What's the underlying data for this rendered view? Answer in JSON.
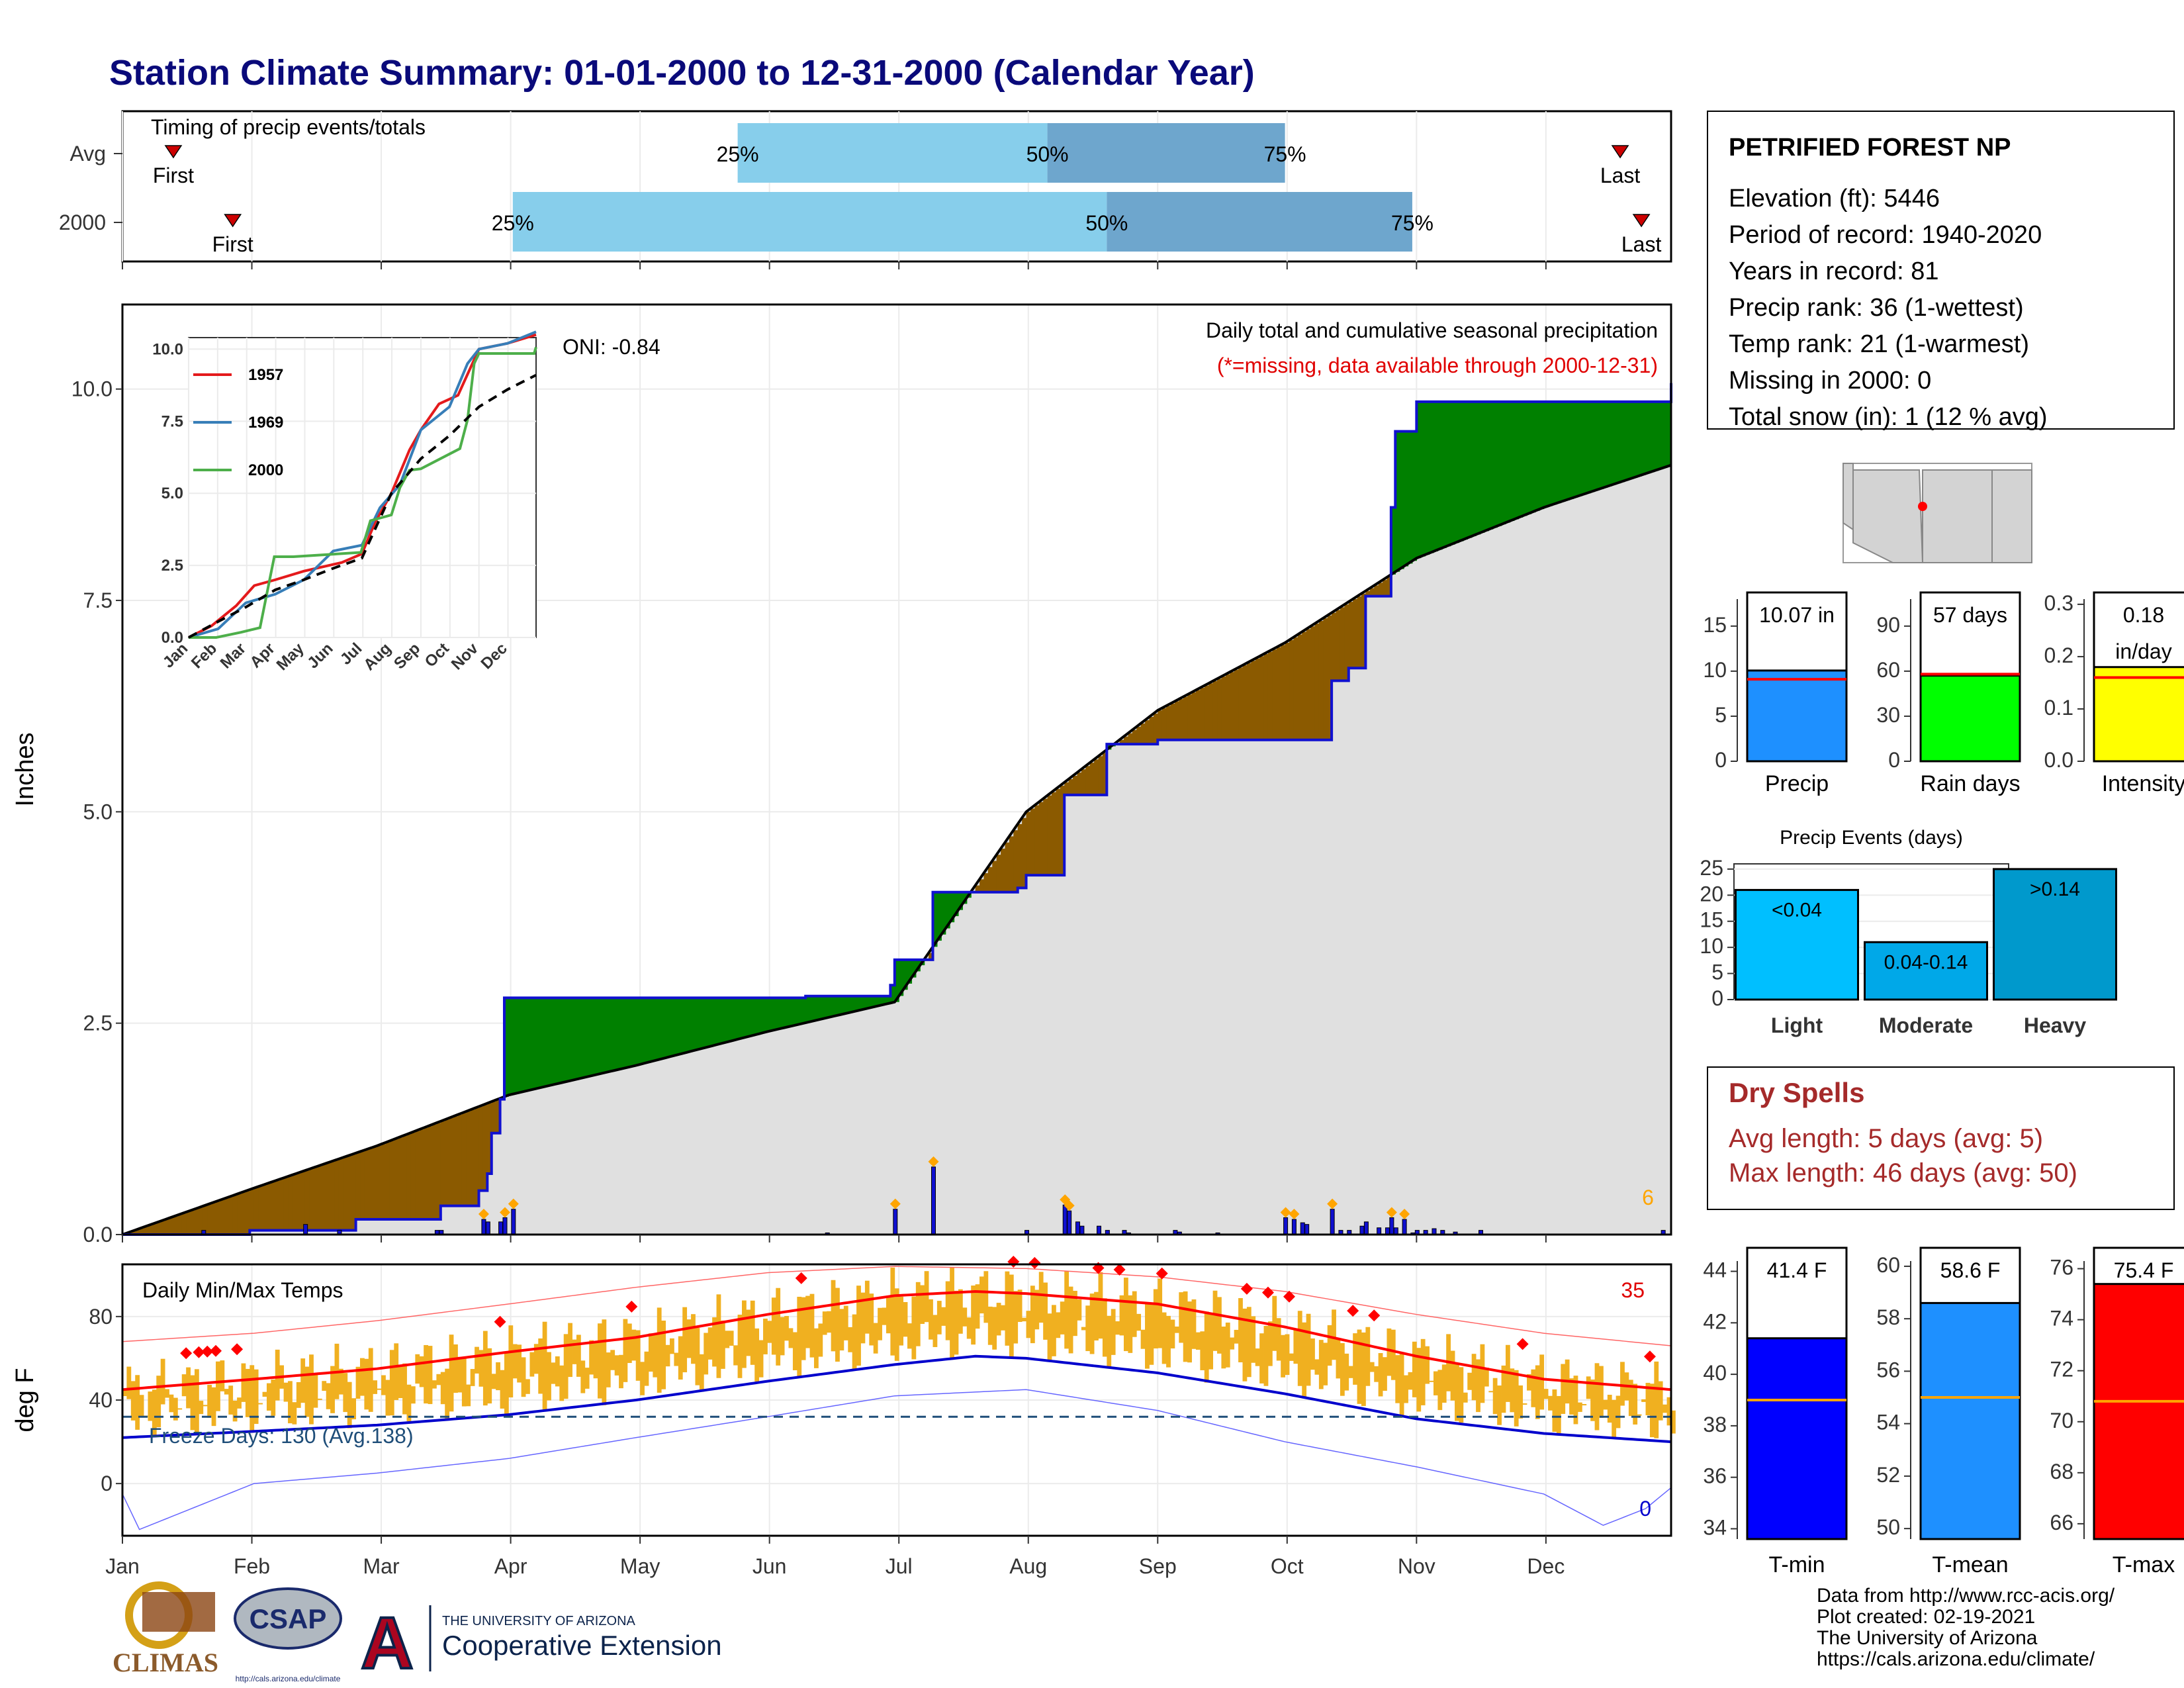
{
  "title": "Station Climate Summary: 01-01-2000 to 12-31-2000 (Calendar Year)",
  "timing": {
    "panel_label": "Timing of precip events/totals",
    "rows": [
      {
        "label": "Avg",
        "first_label": "First",
        "last_label": "Last",
        "first_day": 12,
        "p25_day": 145,
        "p50_day": 218,
        "p75_day": 274,
        "last_day": 353
      },
      {
        "label": "2000",
        "first_label": "First",
        "last_label": "Last",
        "first_day": 26,
        "p25_day": 92,
        "p50_day": 232,
        "p75_day": 304,
        "last_day": 358
      }
    ],
    "pct_labels": [
      "25%",
      "50%",
      "75%"
    ],
    "colors": {
      "q1": "#87ceeb",
      "q2": "#6ea6cd",
      "marker": "#cc0000"
    }
  },
  "station": {
    "name": "PETRIFIED FOREST NP",
    "lines": [
      "Elevation (ft): 5446",
      "Period of record: 1940-2020",
      "Years in record: 81",
      "Precip rank: 36 (1-wettest)",
      "Temp rank: 21 (1-warmest)",
      "Missing in 2000: 0",
      "Total snow (in): 1 (12 % avg)"
    ]
  },
  "main_chart": {
    "ylabel": "Inches",
    "title": "Daily total and cumulative seasonal precipitation",
    "note": "(*=missing, data available through 2000-12-31)",
    "oni": "ONI: -0.84",
    "corner_count": "6",
    "ylim": [
      0,
      11.0
    ],
    "yticks": [
      "0.0",
      "2.5",
      "5.0",
      "7.5",
      "10.0"
    ],
    "colors": {
      "observed": "#1010d0",
      "above": "#008000",
      "below": "#8b5a00",
      "normal_area": "#e0e0e0"
    }
  },
  "chart_data": [
    {
      "type": "area",
      "name": "cumulative precipitation",
      "series": [
        {
          "name": "2000 observed cumulative",
          "x": [
            "01-01",
            "01-30",
            "01-31",
            "02-24",
            "02-25",
            "03-15",
            "03-16",
            "03-24",
            "03-25",
            "03-27",
            "03-28",
            "03-30",
            "03-31",
            "04-20",
            "05-01",
            "06-10",
            "06-30",
            "07-01",
            "07-09",
            "07-10",
            "07-22",
            "07-30",
            "08-01",
            "08-10",
            "08-20",
            "09-01",
            "10-01",
            "10-12",
            "10-16",
            "10-20",
            "10-26",
            "10-27",
            "11-01",
            "12-10",
            "12-29",
            "12-31"
          ],
          "y": [
            0.0,
            0.0,
            0.05,
            0.05,
            0.18,
            0.18,
            0.34,
            0.34,
            0.52,
            0.72,
            1.2,
            1.6,
            2.8,
            2.8,
            2.8,
            2.82,
            2.95,
            3.25,
            3.25,
            4.05,
            4.05,
            4.1,
            4.25,
            5.2,
            5.8,
            5.85,
            5.85,
            6.55,
            6.7,
            7.55,
            8.6,
            9.5,
            9.85,
            9.85,
            9.85,
            10.07
          ]
        },
        {
          "name": "average cumulative",
          "x": [
            "01-01",
            "02-01",
            "03-01",
            "04-01",
            "05-01",
            "06-01",
            "07-01",
            "08-01",
            "09-01",
            "10-01",
            "11-01",
            "12-01",
            "12-31"
          ],
          "y": [
            0.0,
            0.55,
            1.05,
            1.65,
            2.0,
            2.4,
            2.75,
            5.0,
            6.2,
            7.0,
            8.0,
            8.6,
            9.1
          ]
        }
      ],
      "daily_totals": {
        "x": [
          "01-20",
          "02-13",
          "02-21",
          "03-15",
          "03-16",
          "03-26",
          "03-27",
          "03-30",
          "03-31",
          "04-02",
          "06-15",
          "07-01",
          "07-10",
          "08-01",
          "08-10",
          "08-11",
          "08-13",
          "08-14",
          "08-18",
          "08-20",
          "08-24",
          "08-25",
          "09-05",
          "09-06",
          "09-15",
          "10-01",
          "10-03",
          "10-05",
          "10-06",
          "10-12",
          "10-14",
          "10-16",
          "10-19",
          "10-20",
          "10-23",
          "10-25",
          "10-26",
          "10-27",
          "10-29",
          "10-31",
          "11-01",
          "11-03",
          "11-05",
          "11-07",
          "11-10",
          "11-16",
          "12-29"
        ],
        "y": [
          0.05,
          0.12,
          0.05,
          0.05,
          0.05,
          0.18,
          0.15,
          0.15,
          0.2,
          0.3,
          0.02,
          0.3,
          0.8,
          0.05,
          0.35,
          0.28,
          0.15,
          0.1,
          0.1,
          0.05,
          0.05,
          0.02,
          0.05,
          0.03,
          0.02,
          0.2,
          0.18,
          0.14,
          0.12,
          0.3,
          0.05,
          0.05,
          0.1,
          0.15,
          0.08,
          0.08,
          0.2,
          0.08,
          0.18,
          0.02,
          0.05,
          0.05,
          0.07,
          0.05,
          0.03,
          0.05,
          0.05
        ]
      }
    },
    {
      "type": "line",
      "name": "inset cumulative comparison",
      "categories": [
        "Jan",
        "Feb",
        "Mar",
        "Apr",
        "May",
        "Jun",
        "Jul",
        "Aug",
        "Sep",
        "Oct",
        "Nov",
        "Dec"
      ],
      "ylim": [
        0,
        10.0
      ],
      "yticks": [
        "0.0",
        "2.5",
        "5.0",
        "7.5",
        "10.0"
      ],
      "series": [
        {
          "name": "1957",
          "color": "#e41a1c",
          "x": [
            "01-01",
            "01-25",
            "02-20",
            "03-10",
            "04-01",
            "05-01",
            "06-10",
            "07-01",
            "07-15",
            "08-01",
            "08-20",
            "09-01",
            "09-20",
            "10-10",
            "11-01",
            "12-01",
            "12-31"
          ],
          "y": [
            0.0,
            0.4,
            1.1,
            1.8,
            2.0,
            2.3,
            2.6,
            2.9,
            4.0,
            5.0,
            6.5,
            7.2,
            8.1,
            8.4,
            10.0,
            10.2,
            10.5
          ]
        },
        {
          "name": "1969",
          "color": "#377eb8",
          "x": [
            "01-01",
            "02-01",
            "03-01",
            "04-01",
            "05-01",
            "06-01",
            "07-01",
            "07-20",
            "08-10",
            "09-01",
            "10-01",
            "10-20",
            "11-01",
            "12-01",
            "12-31"
          ],
          "y": [
            0.0,
            0.3,
            1.2,
            1.5,
            2.0,
            3.0,
            3.2,
            4.5,
            5.3,
            7.2,
            8.0,
            9.5,
            10.0,
            10.2,
            10.6
          ]
        },
        {
          "name": "2000",
          "color": "#4daf4a",
          "x": [
            "01-01",
            "01-30",
            "02-25",
            "03-16",
            "03-31",
            "04-20",
            "06-30",
            "07-10",
            "08-01",
            "08-10",
            "08-20",
            "09-01",
            "10-12",
            "10-20",
            "10-27",
            "11-01",
            "12-29",
            "12-31"
          ],
          "y": [
            0.0,
            0.0,
            0.18,
            0.34,
            2.8,
            2.8,
            2.95,
            4.05,
            4.25,
            5.2,
            5.8,
            5.85,
            6.55,
            7.55,
            9.5,
            9.85,
            9.85,
            10.07
          ]
        },
        {
          "name": "average",
          "color": "#000000",
          "x": [
            "01-01",
            "02-01",
            "03-01",
            "04-01",
            "05-01",
            "06-01",
            "07-01",
            "08-01",
            "09-01",
            "10-01",
            "11-01",
            "12-01",
            "12-31"
          ],
          "y": [
            0.0,
            0.55,
            1.05,
            1.65,
            2.0,
            2.4,
            2.75,
            5.0,
            6.2,
            7.0,
            8.0,
            8.6,
            9.1
          ]
        }
      ]
    },
    {
      "type": "bar",
      "name": "annual precipitation summaries",
      "panels": [
        {
          "xlabel": "Precip",
          "value": 10.07,
          "avg": 9.1,
          "value_label": "10.07 in",
          "ylim": [
            0,
            18
          ],
          "yticks": [
            "0",
            "5",
            "10",
            "15"
          ],
          "ytick_values": [
            0,
            5,
            10,
            15
          ],
          "color": "#1e90ff"
        },
        {
          "xlabel": "Rain days",
          "value": 57,
          "avg": 58,
          "value_label": "57 days",
          "ylim": [
            0,
            108
          ],
          "yticks": [
            "0",
            "30",
            "60",
            "90"
          ],
          "ytick_values": [
            0,
            30,
            60,
            90
          ],
          "color": "#00ff00"
        },
        {
          "xlabel": "Intensity",
          "value": 0.18,
          "avg": 0.16,
          "value_label": "0.18\nin/day",
          "ylim": [
            0,
            0.31
          ],
          "yticks": [
            "0.0",
            "0.1",
            "0.2",
            "0.3"
          ],
          "ytick_values": [
            0,
            0.1,
            0.2,
            0.3
          ],
          "color": "#ffff00"
        }
      ]
    },
    {
      "type": "bar",
      "name": "Precip Events (days)",
      "title": "Precip Events (days)",
      "categories": [
        "Light",
        "Moderate",
        "Heavy"
      ],
      "values": [
        21,
        11,
        25
      ],
      "bar_labels": [
        "<0.04",
        "0.04-0.14",
        ">0.14"
      ],
      "colors": [
        "#00bfff",
        "#00a8e8",
        "#0099cc"
      ],
      "ylim": [
        0,
        26
      ],
      "yticks": [
        "0",
        "5",
        "10",
        "15",
        "20",
        "25"
      ]
    },
    {
      "type": "line",
      "name": "Daily Min/Max Temps",
      "title": "Daily Min/Max Temps",
      "ylabel": "deg F",
      "ylim": [
        -25,
        105
      ],
      "yticks": [
        "0",
        "40",
        "80"
      ],
      "freeze_label": "Freeze Days: 130 (Avg.138)",
      "freeze_line": 32,
      "record_high_count": "35",
      "record_low_count": "0",
      "months": [
        "Jan",
        "Feb",
        "Mar",
        "Apr",
        "May",
        "Jun",
        "Jul",
        "Aug",
        "Sep",
        "Oct",
        "Nov",
        "Dec"
      ],
      "avg_max": {
        "x": [
          "01-01",
          "02-01",
          "03-01",
          "04-01",
          "05-01",
          "06-01",
          "07-01",
          "07-20",
          "08-01",
          "09-01",
          "10-01",
          "11-01",
          "12-01",
          "12-31"
        ],
        "y": [
          45,
          50,
          55,
          63,
          70,
          81,
          90,
          92,
          91,
          86,
          75,
          61,
          50,
          45
        ]
      },
      "avg_min": {
        "x": [
          "01-01",
          "02-01",
          "03-01",
          "04-01",
          "05-01",
          "06-01",
          "07-01",
          "07-20",
          "08-01",
          "09-01",
          "10-01",
          "11-01",
          "12-01",
          "12-31"
        ],
        "y": [
          22,
          25,
          28,
          33,
          40,
          49,
          57,
          61,
          60,
          53,
          43,
          31,
          24,
          20
        ]
      },
      "record_max": {
        "x": [
          "01-01",
          "02-01",
          "03-01",
          "04-01",
          "05-01",
          "06-01",
          "07-01",
          "08-01",
          "09-01",
          "10-01",
          "11-01",
          "12-01",
          "12-31"
        ],
        "y": [
          68,
          72,
          78,
          86,
          94,
          101,
          104,
          103,
          99,
          92,
          81,
          72,
          66
        ]
      },
      "record_min": {
        "x": [
          "01-01",
          "01-05",
          "02-01",
          "03-01",
          "04-01",
          "05-01",
          "06-01",
          "07-01",
          "08-01",
          "09-01",
          "10-01",
          "11-01",
          "12-01",
          "12-15",
          "12-25",
          "12-31"
        ],
        "y": [
          -5,
          -22,
          0,
          5,
          12,
          22,
          32,
          42,
          45,
          35,
          20,
          8,
          -5,
          -20,
          -12,
          -2
        ]
      },
      "colors": {
        "band": "#f0b020",
        "max_line": "#ff0000",
        "min_line": "#0000cc",
        "record_max": "#ff6666",
        "record_min": "#6666ff",
        "freeze": "#1f4e79",
        "record_marker": "#ff0000"
      }
    },
    {
      "type": "bar",
      "name": "temperature summaries",
      "panels": [
        {
          "xlabel": "T-min",
          "value": 41.4,
          "avg": 39.0,
          "value_label": "41.4 F",
          "ylim": [
            33.6,
            44.4
          ],
          "yticks": [
            "34",
            "36",
            "38",
            "40",
            "42",
            "44"
          ],
          "ytick_values": [
            34,
            36,
            38,
            40,
            42,
            44
          ],
          "color": "#0000ff"
        },
        {
          "xlabel": "T-mean",
          "value": 58.6,
          "avg": 55.0,
          "value_label": "58.6 F",
          "ylim": [
            49.6,
            60.2
          ],
          "yticks": [
            "50",
            "52",
            "54",
            "56",
            "58",
            "60"
          ],
          "ytick_values": [
            50,
            52,
            54,
            56,
            58,
            60
          ],
          "color": "#1e90ff"
        },
        {
          "xlabel": "T-max",
          "value": 75.4,
          "avg": 70.8,
          "value_label": "75.4 F",
          "ylim": [
            65.4,
            76.3
          ],
          "yticks": [
            "66",
            "68",
            "70",
            "72",
            "74",
            "76"
          ],
          "ytick_values": [
            66,
            68,
            70,
            72,
            74,
            76
          ],
          "color": "#ff0000"
        }
      ]
    }
  ],
  "months": [
    "Jan",
    "Feb",
    "Mar",
    "Apr",
    "May",
    "Jun",
    "Jul",
    "Aug",
    "Sep",
    "Oct",
    "Nov",
    "Dec"
  ],
  "dry_spells": {
    "title": "Dry Spells",
    "avg": "Avg length: 5 days (avg: 5)",
    "max": "Max length: 46 days (avg: 50)",
    "color": "#a52a2a"
  },
  "footer": {
    "logos": [
      "CLIMAS",
      "CSAP",
      "http://cals.arizona.edu/climate"
    ],
    "ua_small": "THE UNIVERSITY OF ARIZONA",
    "ua_big": "Cooperative Extension",
    "credits": [
      "Data from http://www.rcc-acis.org/",
      "Plot created: 02-19-2021",
      "The University of Arizona",
      "https://cals.arizona.edu/climate/"
    ]
  }
}
